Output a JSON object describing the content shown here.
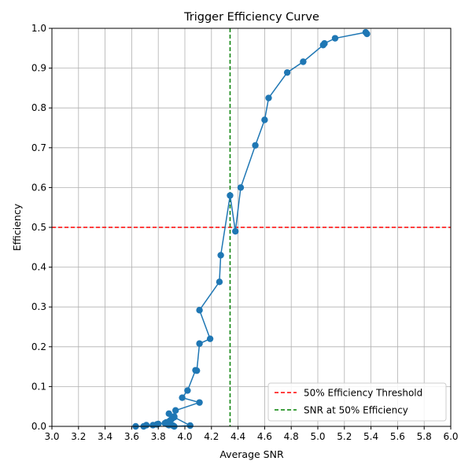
{
  "chart_data": {
    "type": "line",
    "title": "Trigger Efficiency Curve",
    "xlabel": "Average SNR",
    "ylabel": "Efficiency",
    "xlim": [
      3.0,
      6.0
    ],
    "ylim": [
      0.0,
      1.0
    ],
    "xticks": [
      "3.0",
      "3.2",
      "3.4",
      "3.6",
      "3.8",
      "4.0",
      "4.2",
      "4.4",
      "4.6",
      "4.8",
      "5.0",
      "5.2",
      "5.4",
      "5.6",
      "5.8",
      "6.0"
    ],
    "yticks": [
      "0.0",
      "0.1",
      "0.2",
      "0.3",
      "0.4",
      "0.5",
      "0.6",
      "0.7",
      "0.8",
      "0.9",
      "1.0"
    ],
    "grid": true,
    "legend_position": "bottom-right",
    "series": [
      {
        "color": "#1f77b4",
        "marker": "circle",
        "x": [
          3.63,
          3.69,
          3.71,
          3.76,
          3.79,
          3.8,
          3.85,
          3.86,
          3.87,
          3.88,
          3.88,
          3.89,
          3.9,
          3.91,
          3.92,
          4.04,
          3.92,
          3.88,
          3.92,
          3.93,
          4.11,
          3.98,
          4.02,
          4.08,
          4.09,
          4.11,
          4.19,
          4.11,
          4.26,
          4.27,
          4.34,
          4.38,
          4.42,
          4.53,
          4.6,
          4.63,
          4.77,
          4.89,
          5.04,
          5.05,
          5.13,
          5.36,
          5.37
        ],
        "y": [
          0.0,
          0.0,
          0.003,
          0.003,
          0.005,
          0.006,
          0.008,
          0.01,
          0.005,
          0.003,
          0.012,
          0.015,
          0.018,
          0.002,
          0.0,
          0.002,
          0.023,
          0.032,
          0.025,
          0.04,
          0.06,
          0.072,
          0.09,
          0.141,
          0.14,
          0.208,
          0.22,
          0.292,
          0.363,
          0.43,
          0.58,
          0.49,
          0.6,
          0.706,
          0.77,
          0.825,
          0.889,
          0.916,
          0.958,
          0.962,
          0.975,
          0.99,
          0.986
        ]
      }
    ],
    "reference_lines": [
      {
        "orientation": "horizontal",
        "value": 0.5,
        "color": "#ff0000",
        "style": "dashed",
        "label": "50% Efficiency Threshold"
      },
      {
        "orientation": "vertical",
        "value": 4.34,
        "color": "#008000",
        "style": "dashed",
        "label": "SNR at 50% Efficiency"
      }
    ]
  }
}
